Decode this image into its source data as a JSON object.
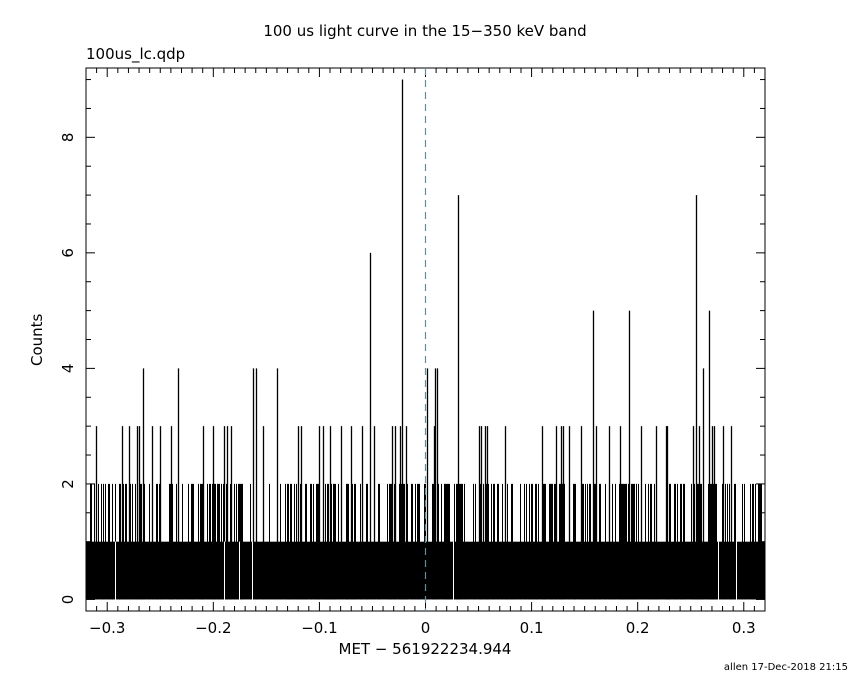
{
  "header": {
    "title": "100 us light curve in the 15−350 keV band",
    "file_label": "100us_lc.qdp"
  },
  "footer": {
    "stamp": "allen 17-Dec-2018 21:15"
  },
  "chart_data": {
    "type": "bar",
    "style": "histogram",
    "title": "100 us light curve in the 15−350 keV band",
    "xlabel": "MET − 561922234.944",
    "ylabel": "Counts",
    "xlim": [
      -0.32,
      0.32
    ],
    "ylim": [
      -0.2,
      9.2
    ],
    "bin_width": 0.0001,
    "xticks": [
      -0.3,
      -0.2,
      -0.1,
      0,
      0.1,
      0.2,
      0.3
    ],
    "xtick_labels": [
      "−0.3",
      "−0.2",
      "−0.1",
      "0",
      "0.1",
      "0.2",
      "0.3"
    ],
    "yticks": [
      0,
      2,
      4,
      6,
      8
    ],
    "ytick_labels": [
      "0",
      "2",
      "4",
      "6",
      "8"
    ],
    "trigger_line": {
      "x": 0,
      "color": "#2a9fd6",
      "style": "dashed"
    },
    "series_color": "#000000",
    "baseline_counts": 1,
    "approx_2count_density": 0.35,
    "zero_count_bins": [
      -0.293,
      -0.19,
      -0.176,
      -0.164,
      0.026,
      0.276,
      0.293
    ],
    "peaks": [
      {
        "x": -0.311,
        "y": 3
      },
      {
        "x": -0.286,
        "y": 3
      },
      {
        "x": -0.279,
        "y": 3
      },
      {
        "x": -0.272,
        "y": 3
      },
      {
        "x": -0.27,
        "y": 3
      },
      {
        "x": -0.266,
        "y": 4
      },
      {
        "x": -0.258,
        "y": 3
      },
      {
        "x": -0.25,
        "y": 3
      },
      {
        "x": -0.24,
        "y": 3
      },
      {
        "x": -0.233,
        "y": 4
      },
      {
        "x": -0.21,
        "y": 3
      },
      {
        "x": -0.2,
        "y": 3
      },
      {
        "x": -0.19,
        "y": 3
      },
      {
        "x": -0.187,
        "y": 3
      },
      {
        "x": -0.183,
        "y": 3
      },
      {
        "x": -0.163,
        "y": 4
      },
      {
        "x": -0.16,
        "y": 4
      },
      {
        "x": -0.153,
        "y": 3
      },
      {
        "x": -0.14,
        "y": 4
      },
      {
        "x": -0.12,
        "y": 3
      },
      {
        "x": -0.117,
        "y": 3
      },
      {
        "x": -0.1,
        "y": 3
      },
      {
        "x": -0.097,
        "y": 3
      },
      {
        "x": -0.09,
        "y": 3
      },
      {
        "x": -0.08,
        "y": 3
      },
      {
        "x": -0.07,
        "y": 3
      },
      {
        "x": -0.06,
        "y": 3
      },
      {
        "x": -0.052,
        "y": 6
      },
      {
        "x": -0.049,
        "y": 3
      },
      {
        "x": -0.032,
        "y": 3
      },
      {
        "x": -0.029,
        "y": 3
      },
      {
        "x": -0.024,
        "y": 3
      },
      {
        "x": -0.022,
        "y": 9
      },
      {
        "x": -0.018,
        "y": 3
      },
      {
        "x": 0.001,
        "y": 4
      },
      {
        "x": 0.008,
        "y": 3
      },
      {
        "x": 0.009,
        "y": 4
      },
      {
        "x": 0.011,
        "y": 4
      },
      {
        "x": 0.031,
        "y": 7
      },
      {
        "x": 0.05,
        "y": 3
      },
      {
        "x": 0.052,
        "y": 3
      },
      {
        "x": 0.056,
        "y": 3
      },
      {
        "x": 0.058,
        "y": 3
      },
      {
        "x": 0.075,
        "y": 3
      },
      {
        "x": 0.11,
        "y": 3
      },
      {
        "x": 0.123,
        "y": 3
      },
      {
        "x": 0.128,
        "y": 3
      },
      {
        "x": 0.13,
        "y": 3
      },
      {
        "x": 0.135,
        "y": 3
      },
      {
        "x": 0.147,
        "y": 3
      },
      {
        "x": 0.158,
        "y": 5
      },
      {
        "x": 0.161,
        "y": 3
      },
      {
        "x": 0.173,
        "y": 3
      },
      {
        "x": 0.183,
        "y": 3
      },
      {
        "x": 0.192,
        "y": 5
      },
      {
        "x": 0.203,
        "y": 3
      },
      {
        "x": 0.217,
        "y": 3
      },
      {
        "x": 0.227,
        "y": 3
      },
      {
        "x": 0.228,
        "y": 3
      },
      {
        "x": 0.252,
        "y": 3
      },
      {
        "x": 0.255,
        "y": 7
      },
      {
        "x": 0.258,
        "y": 3
      },
      {
        "x": 0.262,
        "y": 4
      },
      {
        "x": 0.267,
        "y": 5
      },
      {
        "x": 0.27,
        "y": 3
      },
      {
        "x": 0.272,
        "y": 3
      },
      {
        "x": 0.28,
        "y": 3
      },
      {
        "x": 0.288,
        "y": 3
      }
    ]
  }
}
